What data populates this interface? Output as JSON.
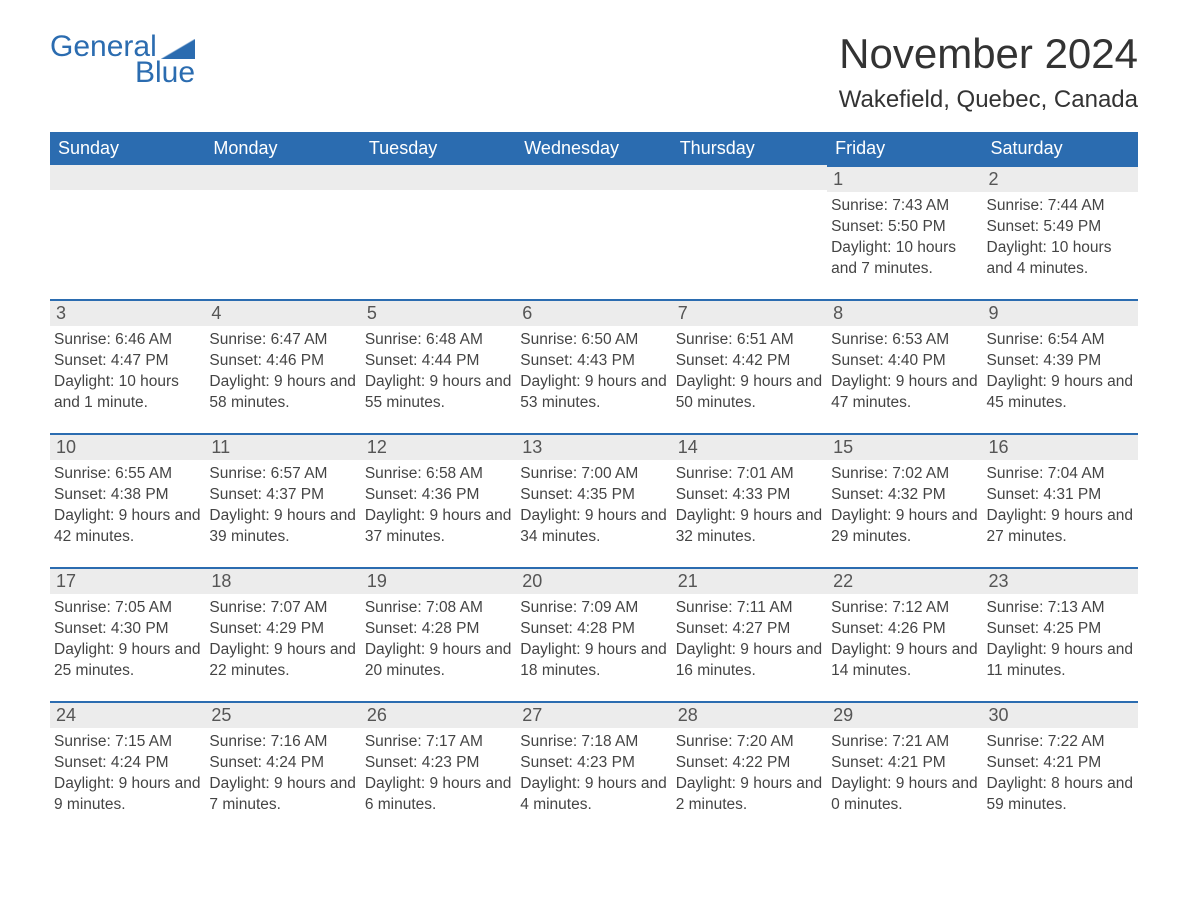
{
  "logo": {
    "text1": "General",
    "text2": "Blue"
  },
  "title": "November 2024",
  "location": "Wakefield, Quebec, Canada",
  "colors": {
    "header_bg": "#2b6cb0",
    "header_text": "#ffffff",
    "daynum_bg": "#ececec",
    "border": "#2b6cb0",
    "body_text": "#444444",
    "background": "#ffffff"
  },
  "weekdays": [
    "Sunday",
    "Monday",
    "Tuesday",
    "Wednesday",
    "Thursday",
    "Friday",
    "Saturday"
  ],
  "weeks": [
    [
      null,
      null,
      null,
      null,
      null,
      {
        "n": "1",
        "sunrise": "7:43 AM",
        "sunset": "5:50 PM",
        "daylight": "10 hours and 7 minutes."
      },
      {
        "n": "2",
        "sunrise": "7:44 AM",
        "sunset": "5:49 PM",
        "daylight": "10 hours and 4 minutes."
      }
    ],
    [
      {
        "n": "3",
        "sunrise": "6:46 AM",
        "sunset": "4:47 PM",
        "daylight": "10 hours and 1 minute."
      },
      {
        "n": "4",
        "sunrise": "6:47 AM",
        "sunset": "4:46 PM",
        "daylight": "9 hours and 58 minutes."
      },
      {
        "n": "5",
        "sunrise": "6:48 AM",
        "sunset": "4:44 PM",
        "daylight": "9 hours and 55 minutes."
      },
      {
        "n": "6",
        "sunrise": "6:50 AM",
        "sunset": "4:43 PM",
        "daylight": "9 hours and 53 minutes."
      },
      {
        "n": "7",
        "sunrise": "6:51 AM",
        "sunset": "4:42 PM",
        "daylight": "9 hours and 50 minutes."
      },
      {
        "n": "8",
        "sunrise": "6:53 AM",
        "sunset": "4:40 PM",
        "daylight": "9 hours and 47 minutes."
      },
      {
        "n": "9",
        "sunrise": "6:54 AM",
        "sunset": "4:39 PM",
        "daylight": "9 hours and 45 minutes."
      }
    ],
    [
      {
        "n": "10",
        "sunrise": "6:55 AM",
        "sunset": "4:38 PM",
        "daylight": "9 hours and 42 minutes."
      },
      {
        "n": "11",
        "sunrise": "6:57 AM",
        "sunset": "4:37 PM",
        "daylight": "9 hours and 39 minutes."
      },
      {
        "n": "12",
        "sunrise": "6:58 AM",
        "sunset": "4:36 PM",
        "daylight": "9 hours and 37 minutes."
      },
      {
        "n": "13",
        "sunrise": "7:00 AM",
        "sunset": "4:35 PM",
        "daylight": "9 hours and 34 minutes."
      },
      {
        "n": "14",
        "sunrise": "7:01 AM",
        "sunset": "4:33 PM",
        "daylight": "9 hours and 32 minutes."
      },
      {
        "n": "15",
        "sunrise": "7:02 AM",
        "sunset": "4:32 PM",
        "daylight": "9 hours and 29 minutes."
      },
      {
        "n": "16",
        "sunrise": "7:04 AM",
        "sunset": "4:31 PM",
        "daylight": "9 hours and 27 minutes."
      }
    ],
    [
      {
        "n": "17",
        "sunrise": "7:05 AM",
        "sunset": "4:30 PM",
        "daylight": "9 hours and 25 minutes."
      },
      {
        "n": "18",
        "sunrise": "7:07 AM",
        "sunset": "4:29 PM",
        "daylight": "9 hours and 22 minutes."
      },
      {
        "n": "19",
        "sunrise": "7:08 AM",
        "sunset": "4:28 PM",
        "daylight": "9 hours and 20 minutes."
      },
      {
        "n": "20",
        "sunrise": "7:09 AM",
        "sunset": "4:28 PM",
        "daylight": "9 hours and 18 minutes."
      },
      {
        "n": "21",
        "sunrise": "7:11 AM",
        "sunset": "4:27 PM",
        "daylight": "9 hours and 16 minutes."
      },
      {
        "n": "22",
        "sunrise": "7:12 AM",
        "sunset": "4:26 PM",
        "daylight": "9 hours and 14 minutes."
      },
      {
        "n": "23",
        "sunrise": "7:13 AM",
        "sunset": "4:25 PM",
        "daylight": "9 hours and 11 minutes."
      }
    ],
    [
      {
        "n": "24",
        "sunrise": "7:15 AM",
        "sunset": "4:24 PM",
        "daylight": "9 hours and 9 minutes."
      },
      {
        "n": "25",
        "sunrise": "7:16 AM",
        "sunset": "4:24 PM",
        "daylight": "9 hours and 7 minutes."
      },
      {
        "n": "26",
        "sunrise": "7:17 AM",
        "sunset": "4:23 PM",
        "daylight": "9 hours and 6 minutes."
      },
      {
        "n": "27",
        "sunrise": "7:18 AM",
        "sunset": "4:23 PM",
        "daylight": "9 hours and 4 minutes."
      },
      {
        "n": "28",
        "sunrise": "7:20 AM",
        "sunset": "4:22 PM",
        "daylight": "9 hours and 2 minutes."
      },
      {
        "n": "29",
        "sunrise": "7:21 AM",
        "sunset": "4:21 PM",
        "daylight": "9 hours and 0 minutes."
      },
      {
        "n": "30",
        "sunrise": "7:22 AM",
        "sunset": "4:21 PM",
        "daylight": "8 hours and 59 minutes."
      }
    ]
  ],
  "labels": {
    "sunrise": "Sunrise:",
    "sunset": "Sunset:",
    "daylight": "Daylight:"
  }
}
